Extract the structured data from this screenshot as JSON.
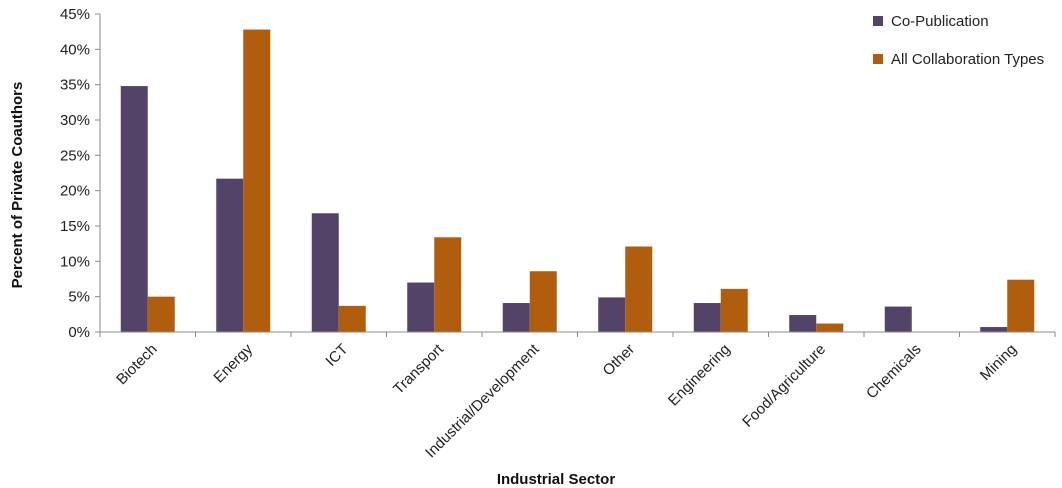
{
  "chart_data": {
    "type": "bar",
    "title": "",
    "xlabel": "Industrial Sector",
    "ylabel": "Percent of Private Coauthors",
    "categories": [
      "Biotech",
      "Energy",
      "ICT",
      "Transport",
      "Industrial/Development",
      "Other",
      "Engineering",
      "Food/Agriculture",
      "Chemicals",
      "Mining"
    ],
    "series": [
      {
        "name": "Co-Publication",
        "color": "#534369",
        "values": [
          34.8,
          21.7,
          16.8,
          7.0,
          4.1,
          4.9,
          4.1,
          2.4,
          3.6,
          0.7
        ]
      },
      {
        "name": "All Collaboration Types",
        "color": "#B05E0E",
        "values": [
          5.0,
          42.8,
          3.7,
          13.4,
          8.6,
          12.1,
          6.1,
          1.2,
          0.0,
          7.4
        ]
      }
    ],
    "ylim": [
      0,
      45
    ],
    "yticks": [
      0,
      5,
      10,
      15,
      20,
      25,
      30,
      35,
      40,
      45
    ],
    "ytick_labels": [
      "0%",
      "5%",
      "10%",
      "15%",
      "20%",
      "25%",
      "30%",
      "35%",
      "40%",
      "45%"
    ],
    "grid": false,
    "legend_position": "top-right"
  }
}
